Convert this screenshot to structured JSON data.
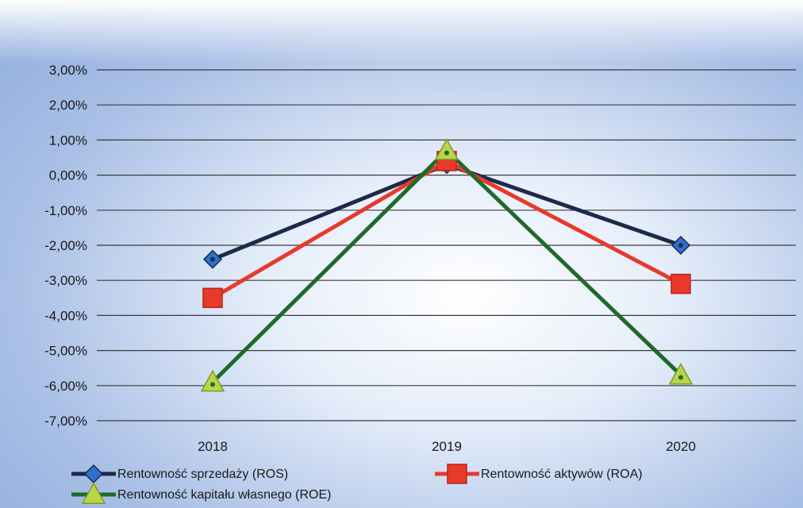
{
  "chart_data": {
    "type": "line",
    "categories": [
      "2018",
      "2019",
      "2020"
    ],
    "ylim": [
      -0.07,
      0.03
    ],
    "y_ticks": [
      0.03,
      0.02,
      0.01,
      0.0,
      -0.01,
      -0.02,
      -0.03,
      -0.04,
      -0.05,
      -0.06,
      -0.07
    ],
    "y_tick_labels": [
      "3,00%",
      "2,00%",
      "1,00%",
      "0,00%",
      "-1,00%",
      "-2,00%",
      "-3,00%",
      "-4,00%",
      "-5,00%",
      "-6,00%",
      "-7,00%"
    ],
    "grid": true,
    "legend_position": "bottom",
    "series": [
      {
        "name": "Rentowność sprzedaży (ROS)",
        "values": [
          -0.024,
          0.003,
          -0.02
        ],
        "color": "#1c2a4a",
        "marker_color": "#2f6fd0",
        "marker": "diamond"
      },
      {
        "name": "Rentowność aktywów (ROA)",
        "values": [
          -0.035,
          0.004,
          -0.031
        ],
        "color": "#e8392a",
        "marker_color": "#e8392a",
        "marker": "square"
      },
      {
        "name": "Rentowność kapitału własnego (ROE)",
        "values": [
          -0.059,
          0.007,
          -0.057
        ],
        "color": "#1e6a2a",
        "marker_color": "#b8d64a",
        "marker": "triangle"
      }
    ]
  }
}
